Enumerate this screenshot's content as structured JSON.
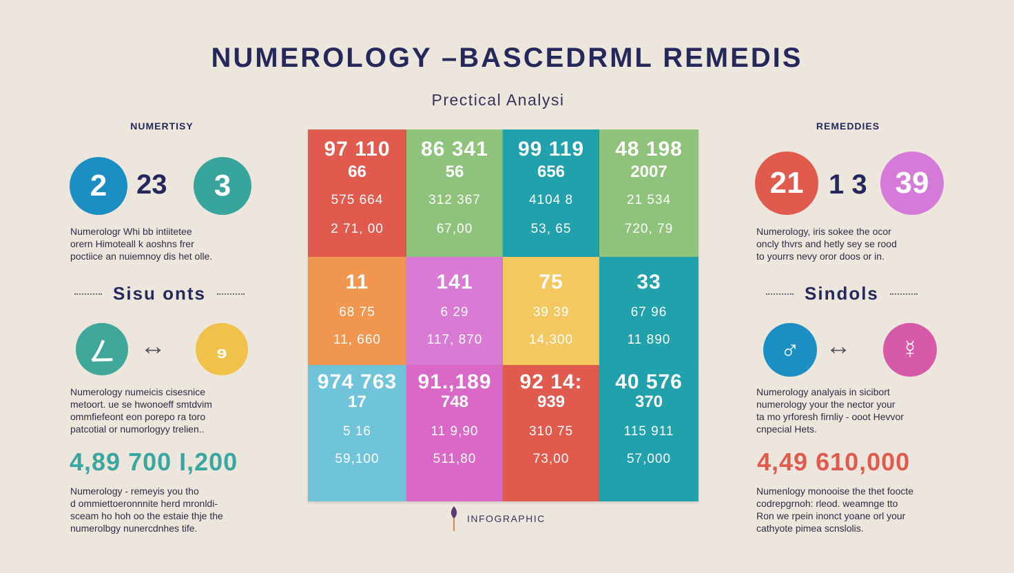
{
  "header": {
    "title": "NUMEROLOGY –BASCEDRML  REMEDIS",
    "subtitle": "Prectical Analysi"
  },
  "left": {
    "heading": "NUMERTISY",
    "circles": [
      {
        "value": "2",
        "color": "#1b8fc4"
      },
      {
        "value": "23"
      },
      {
        "value": "3",
        "color": "#37a59b"
      }
    ],
    "para1": [
      "Numerologr Whi bb intiitetee",
      "orern  Himoteall k aoshns frer",
      "poctiice an nuiemnoy dis het olle."
    ],
    "section_heading": "Sisu onts",
    "symbols": [
      {
        "glyph": "ㄥ",
        "color": "#3fa89a"
      },
      {
        "glyph": "↔"
      },
      {
        "glyph": "₉",
        "color": "#f0c24a"
      }
    ],
    "para2": [
      "Numerology  numeicis cisesnice",
      "metoort.  ue se hwonoeff smtdvim",
      "ommfiefeont eon porepo ra toro",
      "patcotial or numorlogyy trelien.."
    ],
    "stat": "4,89 700 I,200",
    "stat_color": "#3aa6a0",
    "para3": [
      "Numerology  - remeyis you tho",
      "d ommiettoeronnnite herd mronldi-",
      "sceam  ho hoh oo the estaie thje the",
      "numerolbgy nunercdnhes tife."
    ]
  },
  "right": {
    "heading": "REMEDDIES",
    "circles": [
      {
        "value": "21",
        "color": "#e05a4e"
      },
      {
        "value": "1 3"
      },
      {
        "value": "39",
        "color": "#d57ad8"
      }
    ],
    "para1": [
      "Numerology,  iris sokee the ocor",
      "oncly thvrs and hetly sey se rood",
      "to yourrs nevy oror doos or in."
    ],
    "section_heading": "Sindols",
    "symbols": [
      {
        "glyph": "♂",
        "color": "#1b8fc4"
      },
      {
        "glyph": "↔"
      },
      {
        "glyph": "☿",
        "color": "#d75aa8"
      }
    ],
    "para2": [
      "Numerology  analyais in sicibort",
      "numerology  your the nector your",
      "ta mo  yrforesh firnliy - ooot Hevvor",
      "cnpecial Hets."
    ],
    "stat": "4,49 610,000",
    "stat_color": "#e05a4e",
    "para3": [
      "Numenlogy  monooise the thet foocte",
      "codrepgrnoh:  rleod.  weamnge tto",
      "Ron we rpein inonct yoane orl your",
      "cathyote pimea scnslolis."
    ]
  },
  "grid": {
    "cells": [
      {
        "l1": "97 110",
        "l2": "66",
        "l3": "575 664",
        "l4": "2 71, 00",
        "color": "#e05a4e"
      },
      {
        "l1": "86 341",
        "l2": "56",
        "l3": "312 367",
        "l4": "67,00",
        "color": "#8fc27a"
      },
      {
        "l1": "99 119",
        "l2": "656",
        "l3": "4104 8",
        "l4": "53, 65",
        "color": "#21a1ac"
      },
      {
        "l1": "48 198",
        "l2": "2007",
        "l3": "21   534",
        "l4": "720, 79",
        "color": "#8fc27a"
      },
      {
        "l1": "11",
        "l2": "",
        "l3": "68   75",
        "l4": "11, 660",
        "color": "#f0964f"
      },
      {
        "l1": "141",
        "l2": "",
        "l3": "6    29",
        "l4": "117, 870",
        "color": "#d97ad5"
      },
      {
        "l1": "75",
        "l2": "",
        "l3": "39    39",
        "l4": "14,300",
        "color": "#f4c860"
      },
      {
        "l1": "33",
        "l2": "",
        "l3": "67   96",
        "l4": "11   890",
        "color": "#21a1ac"
      },
      {
        "l1": "974   763",
        "l2": "17",
        "l3": "5   16",
        "l4": "59,100",
        "color": "#6fc4d9"
      },
      {
        "l1": "91.,189",
        "l2": "748",
        "l3": "11    9,90",
        "l4": "511,80",
        "color": "#d968c6"
      },
      {
        "l1": "92   14:",
        "l2": "939",
        "l3": "310    75",
        "l4": "73,00",
        "color": "#e05a4e"
      },
      {
        "l1": "40 576",
        "l2": "370",
        "l3": "115    911",
        "l4": "57,000",
        "color": "#21a1ac"
      }
    ]
  },
  "footer": {
    "label": "INFOGRAPHIC",
    "icon": "flower-icon"
  }
}
